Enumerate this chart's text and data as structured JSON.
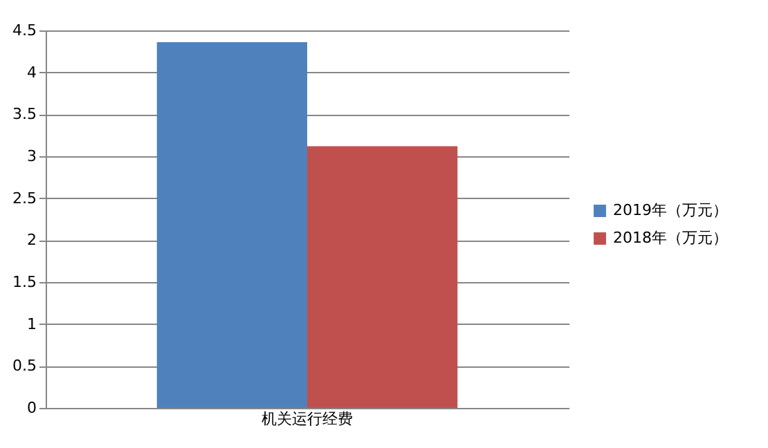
{
  "chart_data": {
    "type": "bar",
    "categories": [
      "机关运行经费"
    ],
    "series": [
      {
        "name": "2019年（万元）",
        "color": "#4f81bd",
        "values": [
          4.36
        ]
      },
      {
        "name": "2018年（万元）",
        "color": "#c0504d",
        "values": [
          3.12
        ]
      }
    ],
    "ylim": [
      0,
      4.5
    ],
    "yticks": [
      0,
      0.5,
      1,
      1.5,
      2,
      2.5,
      3,
      3.5,
      4,
      4.5
    ],
    "grid": "y",
    "legend": "right"
  }
}
